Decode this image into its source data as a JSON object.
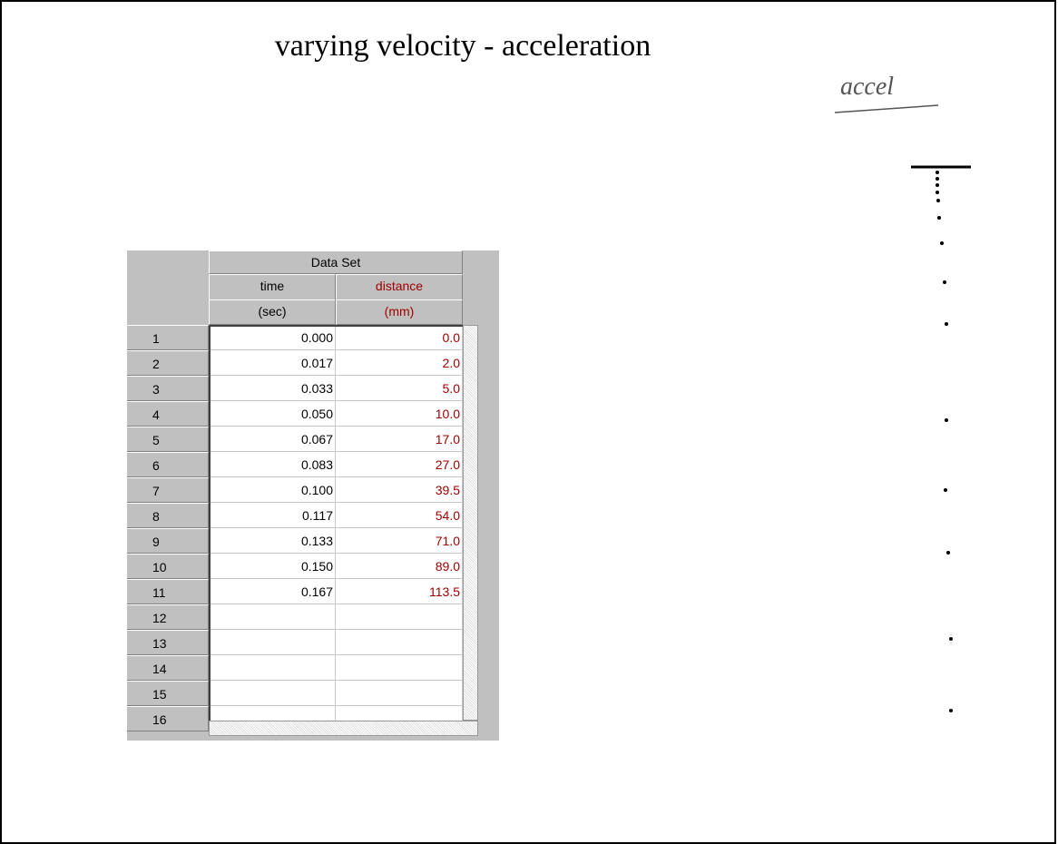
{
  "title": "varying velocity - acceleration",
  "note": "accel",
  "table": {
    "group_header": "Data Set",
    "columns": [
      {
        "name": "time",
        "unit": "(sec)"
      },
      {
        "name": "distance",
        "unit": "(mm)"
      }
    ],
    "rows": [
      {
        "n": "1",
        "time": "0.000",
        "distance": "0.0"
      },
      {
        "n": "2",
        "time": "0.017",
        "distance": "2.0"
      },
      {
        "n": "3",
        "time": "0.033",
        "distance": "5.0"
      },
      {
        "n": "4",
        "time": "0.050",
        "distance": "10.0"
      },
      {
        "n": "5",
        "time": "0.067",
        "distance": "17.0"
      },
      {
        "n": "6",
        "time": "0.083",
        "distance": "27.0"
      },
      {
        "n": "7",
        "time": "0.100",
        "distance": "39.5"
      },
      {
        "n": "8",
        "time": "0.117",
        "distance": "54.0"
      },
      {
        "n": "9",
        "time": "0.133",
        "distance": "71.0"
      },
      {
        "n": "10",
        "time": "0.150",
        "distance": "89.0"
      },
      {
        "n": "11",
        "time": "0.167",
        "distance": "113.5"
      },
      {
        "n": "12"
      },
      {
        "n": "13"
      },
      {
        "n": "14"
      },
      {
        "n": "15"
      },
      {
        "n": "16"
      }
    ]
  }
}
